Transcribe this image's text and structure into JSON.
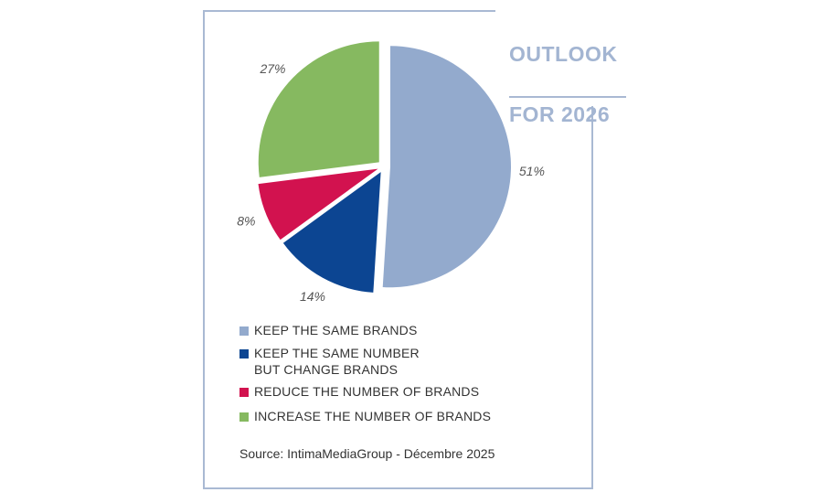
{
  "title": {
    "line1": "OUTLOOK",
    "line2": "FOR 2026"
  },
  "source": "Source: IntimaMediaGroup - Décembre 2025",
  "chart_data": {
    "type": "pie",
    "slices": [
      {
        "label": "KEEP THE SAME BRANDS",
        "label_lines": [
          "KEEP THE SAME BRANDS"
        ],
        "value": 51,
        "value_label": "51%",
        "color": "#93aacd"
      },
      {
        "label": "KEEP THE SAME NUMBER BUT CHANGE BRANDS",
        "label_lines": [
          "KEEP THE SAME NUMBER",
          "BUT CHANGE BRANDS"
        ],
        "value": 14,
        "value_label": "14%",
        "color": "#0c4592"
      },
      {
        "label": "REDUCE THE NUMBER OF BRANDS",
        "label_lines": [
          "REDUCE THE NUMBER OF BRANDS"
        ],
        "value": 8,
        "value_label": "8%",
        "color": "#d2124f"
      },
      {
        "label": "INCREASE THE NUMBER OF BRANDS",
        "label_lines": [
          "INCREASE THE NUMBER OF BRANDS"
        ],
        "value": 27,
        "value_label": "27%",
        "color": "#86b960"
      }
    ],
    "legend_position": "bottom"
  }
}
